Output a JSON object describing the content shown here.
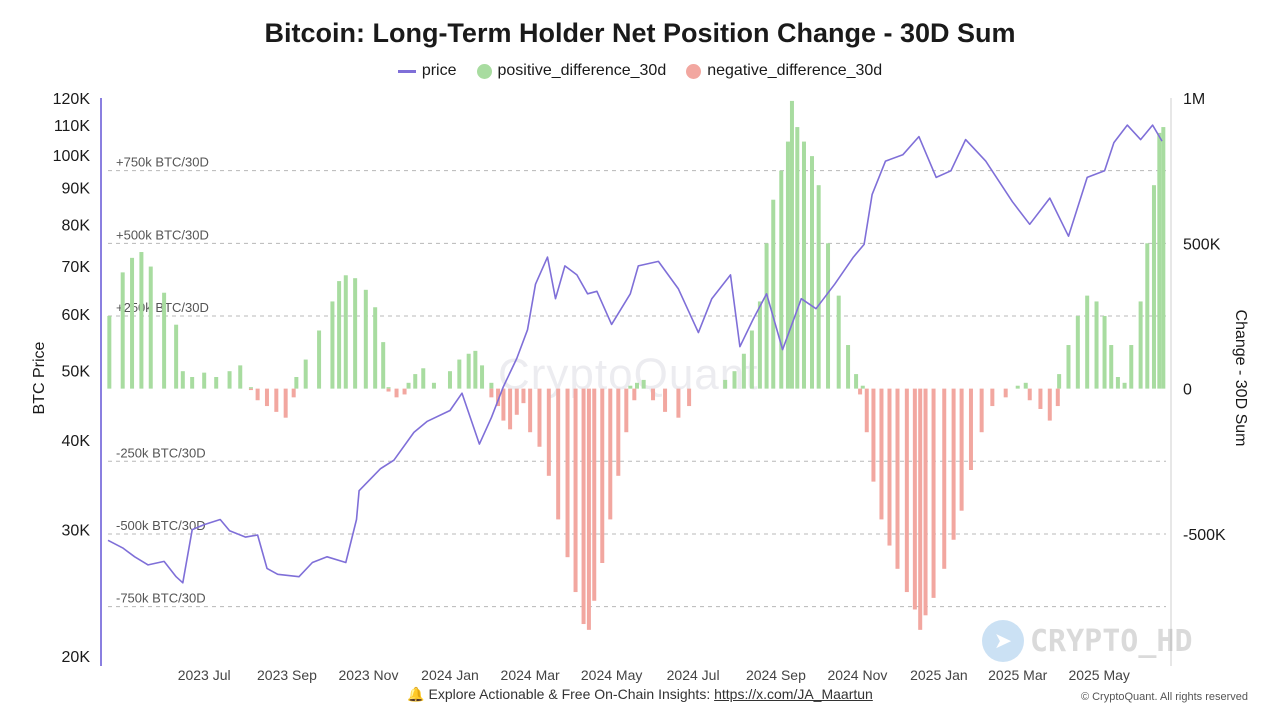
{
  "chart_data": {
    "type": "bar",
    "title": "Bitcoin: Long-Term Holder Net Position Change - 30D Sum",
    "legend": [
      {
        "label": "price",
        "color": "#7f6fd8",
        "kind": "line"
      },
      {
        "label": "positive_difference_30d",
        "color": "#a8dca0",
        "kind": "bar"
      },
      {
        "label": "negative_difference_30d",
        "color": "#f2a7a0",
        "kind": "bar"
      }
    ],
    "legend_position": "top-center",
    "ylabel_left": "BTC Price",
    "ylabel_right": "Change - 30D Sum",
    "left_axis_scale": "log",
    "left_ylim": [
      20000,
      120000
    ],
    "left_ticks": [
      {
        "v": 20000,
        "label": "20K"
      },
      {
        "v": 30000,
        "label": "30K"
      },
      {
        "v": 40000,
        "label": "40K"
      },
      {
        "v": 50000,
        "label": "50K"
      },
      {
        "v": 60000,
        "label": "60K"
      },
      {
        "v": 70000,
        "label": "70K"
      },
      {
        "v": 80000,
        "label": "80K"
      },
      {
        "v": 90000,
        "label": "90K"
      },
      {
        "v": 100000,
        "label": "100K"
      },
      {
        "v": 110000,
        "label": "110K"
      },
      {
        "v": 120000,
        "label": "120K"
      }
    ],
    "right_ylim": [
      -920000,
      1000000
    ],
    "right_ticks": [
      {
        "v": 1000000,
        "label": "1M"
      },
      {
        "v": 500000,
        "label": "500K"
      },
      {
        "v": 0,
        "label": "0"
      },
      {
        "v": -500000,
        "label": "-500K"
      }
    ],
    "reference_lines": [
      {
        "v": 750000,
        "label": "+750k BTC/30D"
      },
      {
        "v": 500000,
        "label": "+500k BTC/30D"
      },
      {
        "v": 250000,
        "label": "+250k BTC/30D"
      },
      {
        "v": -250000,
        "label": "-250k BTC/30D"
      },
      {
        "v": -500000,
        "label": "-500k BTC/30D"
      },
      {
        "v": -750000,
        "label": "-750k BTC/30D"
      }
    ],
    "x_range": [
      "2023-04-20",
      "2025-06-20"
    ],
    "x_ticks": [
      {
        "date": "2023-07-01",
        "label": "2023 Jul"
      },
      {
        "date": "2023-09-01",
        "label": "2023 Sep"
      },
      {
        "date": "2023-11-01",
        "label": "2023 Nov"
      },
      {
        "date": "2024-01-01",
        "label": "2024 Jan"
      },
      {
        "date": "2024-03-01",
        "label": "2024 Mar"
      },
      {
        "date": "2024-05-01",
        "label": "2024 May"
      },
      {
        "date": "2024-07-01",
        "label": "2024 Jul"
      },
      {
        "date": "2024-09-01",
        "label": "2024 Sep"
      },
      {
        "date": "2024-11-01",
        "label": "2024 Nov"
      },
      {
        "date": "2025-01-01",
        "label": "2025 Jan"
      },
      {
        "date": "2025-03-01",
        "label": "2025 Mar"
      },
      {
        "date": "2025-05-01",
        "label": "2025 May"
      }
    ],
    "series": [
      {
        "name": "price",
        "points": [
          [
            "2023-04-20",
            29000
          ],
          [
            "2023-05-01",
            28300
          ],
          [
            "2023-05-10",
            27500
          ],
          [
            "2023-05-20",
            26800
          ],
          [
            "2023-06-01",
            27100
          ],
          [
            "2023-06-10",
            25800
          ],
          [
            "2023-06-15",
            25300
          ],
          [
            "2023-06-22",
            30000
          ],
          [
            "2023-07-01",
            30500
          ],
          [
            "2023-07-13",
            31000
          ],
          [
            "2023-07-20",
            29900
          ],
          [
            "2023-08-01",
            29300
          ],
          [
            "2023-08-10",
            29500
          ],
          [
            "2023-08-17",
            26500
          ],
          [
            "2023-08-25",
            26000
          ],
          [
            "2023-09-10",
            25800
          ],
          [
            "2023-09-20",
            27000
          ],
          [
            "2023-10-01",
            27500
          ],
          [
            "2023-10-15",
            27000
          ],
          [
            "2023-10-23",
            31000
          ],
          [
            "2023-10-25",
            34000
          ],
          [
            "2023-11-10",
            36500
          ],
          [
            "2023-11-20",
            37500
          ],
          [
            "2023-12-05",
            41000
          ],
          [
            "2023-12-15",
            42500
          ],
          [
            "2024-01-01",
            44000
          ],
          [
            "2024-01-10",
            46500
          ],
          [
            "2024-01-23",
            39500
          ],
          [
            "2024-02-01",
            43000
          ],
          [
            "2024-02-10",
            47500
          ],
          [
            "2024-02-20",
            52000
          ],
          [
            "2024-02-28",
            57000
          ],
          [
            "2024-03-05",
            66000
          ],
          [
            "2024-03-14",
            72000
          ],
          [
            "2024-03-20",
            63000
          ],
          [
            "2024-03-27",
            70000
          ],
          [
            "2024-04-05",
            68000
          ],
          [
            "2024-04-13",
            64000
          ],
          [
            "2024-04-20",
            64500
          ],
          [
            "2024-05-01",
            58000
          ],
          [
            "2024-05-15",
            64000
          ],
          [
            "2024-05-21",
            70000
          ],
          [
            "2024-06-05",
            71000
          ],
          [
            "2024-06-20",
            65000
          ],
          [
            "2024-07-05",
            56500
          ],
          [
            "2024-07-15",
            63000
          ],
          [
            "2024-07-29",
            68000
          ],
          [
            "2024-08-05",
            54000
          ],
          [
            "2024-08-15",
            59000
          ],
          [
            "2024-08-25",
            64000
          ],
          [
            "2024-09-06",
            53500
          ],
          [
            "2024-09-20",
            63000
          ],
          [
            "2024-10-01",
            61000
          ],
          [
            "2024-10-15",
            66000
          ],
          [
            "2024-10-29",
            72000
          ],
          [
            "2024-11-06",
            75000
          ],
          [
            "2024-11-12",
            88000
          ],
          [
            "2024-11-22",
            98000
          ],
          [
            "2024-12-05",
            100000
          ],
          [
            "2024-12-17",
            106000
          ],
          [
            "2024-12-30",
            93000
          ],
          [
            "2025-01-10",
            95000
          ],
          [
            "2025-01-21",
            105000
          ],
          [
            "2025-02-05",
            98000
          ],
          [
            "2025-02-25",
            86000
          ],
          [
            "2025-03-10",
            80000
          ],
          [
            "2025-03-25",
            87000
          ],
          [
            "2025-04-08",
            77000
          ],
          [
            "2025-04-22",
            93000
          ],
          [
            "2025-05-05",
            95000
          ],
          [
            "2025-05-12",
            104000
          ],
          [
            "2025-05-22",
            110000
          ],
          [
            "2025-06-01",
            105000
          ],
          [
            "2025-06-10",
            110000
          ],
          [
            "2025-06-17",
            104500
          ]
        ]
      },
      {
        "name": "positive_difference_30d",
        "points": [
          [
            "2023-04-21",
            250000
          ],
          [
            "2023-05-01",
            400000
          ],
          [
            "2023-05-08",
            450000
          ],
          [
            "2023-05-15",
            470000
          ],
          [
            "2023-05-22",
            420000
          ],
          [
            "2023-06-01",
            330000
          ],
          [
            "2023-06-10",
            220000
          ],
          [
            "2023-06-15",
            60000
          ],
          [
            "2023-06-22",
            40000
          ],
          [
            "2023-07-01",
            55000
          ],
          [
            "2023-07-10",
            40000
          ],
          [
            "2023-07-20",
            60000
          ],
          [
            "2023-07-28",
            80000
          ],
          [
            "2023-08-05",
            5000
          ],
          [
            "2023-09-08",
            40000
          ],
          [
            "2023-09-15",
            100000
          ],
          [
            "2023-09-25",
            200000
          ],
          [
            "2023-10-05",
            300000
          ],
          [
            "2023-10-10",
            370000
          ],
          [
            "2023-10-15",
            390000
          ],
          [
            "2023-10-22",
            380000
          ],
          [
            "2023-10-30",
            340000
          ],
          [
            "2023-11-06",
            280000
          ],
          [
            "2023-11-12",
            160000
          ],
          [
            "2023-11-16",
            5000
          ],
          [
            "2023-12-01",
            20000
          ],
          [
            "2023-12-06",
            50000
          ],
          [
            "2023-12-12",
            70000
          ],
          [
            "2023-12-20",
            20000
          ],
          [
            "2024-01-01",
            60000
          ],
          [
            "2024-01-08",
            100000
          ],
          [
            "2024-01-15",
            120000
          ],
          [
            "2024-01-20",
            130000
          ],
          [
            "2024-01-25",
            80000
          ],
          [
            "2024-02-01",
            20000
          ],
          [
            "2024-05-15",
            10000
          ],
          [
            "2024-05-20",
            20000
          ],
          [
            "2024-05-25",
            30000
          ],
          [
            "2024-07-25",
            30000
          ],
          [
            "2024-08-01",
            60000
          ],
          [
            "2024-08-08",
            120000
          ],
          [
            "2024-08-14",
            200000
          ],
          [
            "2024-08-20",
            300000
          ],
          [
            "2024-08-25",
            500000
          ],
          [
            "2024-08-30",
            650000
          ],
          [
            "2024-09-05",
            750000
          ],
          [
            "2024-09-10",
            850000
          ],
          [
            "2024-09-13",
            990000
          ],
          [
            "2024-09-17",
            900000
          ],
          [
            "2024-09-22",
            850000
          ],
          [
            "2024-09-28",
            800000
          ],
          [
            "2024-10-03",
            700000
          ],
          [
            "2024-10-10",
            500000
          ],
          [
            "2024-10-18",
            320000
          ],
          [
            "2024-10-25",
            150000
          ],
          [
            "2024-10-31",
            50000
          ],
          [
            "2024-11-05",
            10000
          ],
          [
            "2025-03-01",
            10000
          ],
          [
            "2025-03-07",
            20000
          ],
          [
            "2025-04-01",
            50000
          ],
          [
            "2025-04-08",
            150000
          ],
          [
            "2025-04-15",
            250000
          ],
          [
            "2025-04-22",
            320000
          ],
          [
            "2025-04-29",
            300000
          ],
          [
            "2025-05-05",
            250000
          ],
          [
            "2025-05-10",
            150000
          ],
          [
            "2025-05-15",
            40000
          ],
          [
            "2025-05-20",
            20000
          ],
          [
            "2025-05-25",
            150000
          ],
          [
            "2025-06-01",
            300000
          ],
          [
            "2025-06-06",
            500000
          ],
          [
            "2025-06-11",
            700000
          ],
          [
            "2025-06-15",
            880000
          ],
          [
            "2025-06-18",
            900000
          ]
        ]
      },
      {
        "name": "negative_difference_30d",
        "points": [
          [
            "2023-08-05",
            -5000
          ],
          [
            "2023-08-10",
            -40000
          ],
          [
            "2023-08-17",
            -60000
          ],
          [
            "2023-08-24",
            -80000
          ],
          [
            "2023-08-31",
            -100000
          ],
          [
            "2023-09-06",
            -30000
          ],
          [
            "2023-11-16",
            -10000
          ],
          [
            "2023-11-22",
            -30000
          ],
          [
            "2023-11-28",
            -20000
          ],
          [
            "2024-02-01",
            -30000
          ],
          [
            "2024-02-06",
            -60000
          ],
          [
            "2024-02-10",
            -110000
          ],
          [
            "2024-02-15",
            -140000
          ],
          [
            "2024-02-20",
            -90000
          ],
          [
            "2024-02-25",
            -50000
          ],
          [
            "2024-03-01",
            -150000
          ],
          [
            "2024-03-08",
            -200000
          ],
          [
            "2024-03-15",
            -300000
          ],
          [
            "2024-03-22",
            -450000
          ],
          [
            "2024-03-29",
            -580000
          ],
          [
            "2024-04-04",
            -700000
          ],
          [
            "2024-04-10",
            -810000
          ],
          [
            "2024-04-14",
            -830000
          ],
          [
            "2024-04-18",
            -730000
          ],
          [
            "2024-04-24",
            -600000
          ],
          [
            "2024-04-30",
            -450000
          ],
          [
            "2024-05-06",
            -300000
          ],
          [
            "2024-05-12",
            -150000
          ],
          [
            "2024-05-18",
            -40000
          ],
          [
            "2024-06-01",
            -40000
          ],
          [
            "2024-06-10",
            -80000
          ],
          [
            "2024-06-20",
            -100000
          ],
          [
            "2024-06-28",
            -60000
          ],
          [
            "2024-11-03",
            -20000
          ],
          [
            "2024-11-08",
            -150000
          ],
          [
            "2024-11-13",
            -320000
          ],
          [
            "2024-11-19",
            -450000
          ],
          [
            "2024-11-25",
            -540000
          ],
          [
            "2024-12-01",
            -620000
          ],
          [
            "2024-12-08",
            -700000
          ],
          [
            "2024-12-14",
            -760000
          ],
          [
            "2024-12-18",
            -830000
          ],
          [
            "2024-12-22",
            -780000
          ],
          [
            "2024-12-28",
            -720000
          ],
          [
            "2025-01-05",
            -620000
          ],
          [
            "2025-01-12",
            -520000
          ],
          [
            "2025-01-18",
            -420000
          ],
          [
            "2025-01-25",
            -280000
          ],
          [
            "2025-02-02",
            -150000
          ],
          [
            "2025-02-10",
            -60000
          ],
          [
            "2025-02-20",
            -30000
          ],
          [
            "2025-03-10",
            -40000
          ],
          [
            "2025-03-18",
            -70000
          ],
          [
            "2025-03-25",
            -110000
          ],
          [
            "2025-03-31",
            -60000
          ]
        ]
      }
    ]
  },
  "footer": {
    "icon": "bell-icon",
    "text": "Explore Actionable & Free On-Chain Insights: ",
    "link": "https://x.com/JA_Maartun"
  },
  "copyright": "© CryptoQuant. All rights reserved",
  "watermarks": {
    "center": "CryptoQuant",
    "brand": "CRYPTO_HD"
  }
}
